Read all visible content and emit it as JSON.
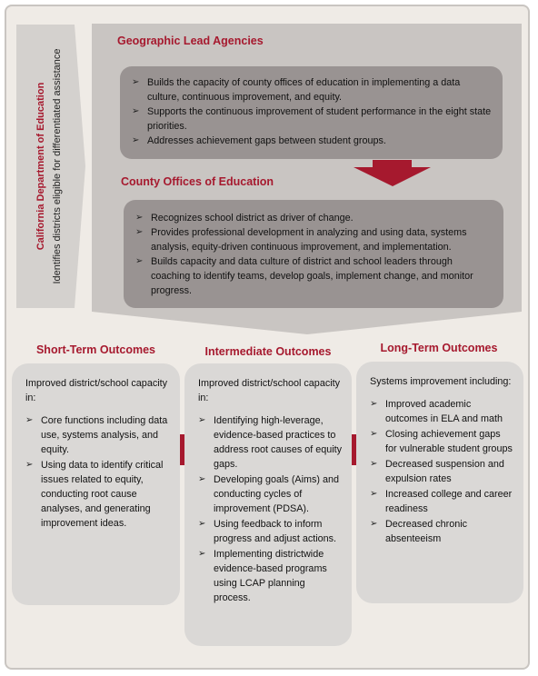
{
  "left_banner": {
    "agency": "California Department of Education",
    "description": "Identifies districts eligible for differentiated assistance"
  },
  "geo": {
    "title": "Geographic Lead Agencies",
    "items": [
      "Builds the capacity of county offices of education in implementing a data culture, continuous improvement, and equity.",
      "Supports the continuous improvement of student performance in the eight state priorities.",
      "Addresses achievement gaps between student groups."
    ]
  },
  "coe": {
    "title": "County Offices of Education",
    "items": [
      "Recognizes school district as driver of change.",
      "Provides professional development in analyzing and using data, systems analysis, equity-driven continuous improvement, and implementation.",
      "Builds capacity and data culture of district and school leaders through coaching to identify teams, develop goals, implement change, and monitor progress."
    ]
  },
  "outcomes": {
    "short": {
      "title": "Short-Term Outcomes",
      "intro": "Improved district/school capacity in:",
      "items": [
        "Core functions including data use, systems analysis, and equity.",
        "Using data to identify critical issues related to equity, conducting root cause analyses, and generating improvement ideas."
      ]
    },
    "intermediate": {
      "title": "Intermediate Outcomes",
      "intro": "Improved district/school capacity in:",
      "items": [
        "Identifying high-leverage, evidence-based practices to address root causes of equity gaps.",
        "Developing goals (Aims) and conducting cycles of improvement (PDSA).",
        "Using feedback to inform progress and adjust actions.",
        "Implementing districtwide evidence-based programs using LCAP planning process."
      ]
    },
    "long": {
      "title": "Long-Term Outcomes",
      "intro": "Systems improvement including:",
      "items": [
        "Improved academic outcomes in ELA and math",
        "Closing achievement gaps for vulnerable student groups",
        "Decreased suspension and expulsion rates",
        "Increased college and career readiness",
        "Decreased chronic absenteeism"
      ]
    }
  },
  "colors": {
    "accent": "#a6192e",
    "dark_box": "#999392",
    "light_panel": "#c9c5c2",
    "outcome_box": "#dad8d6"
  }
}
